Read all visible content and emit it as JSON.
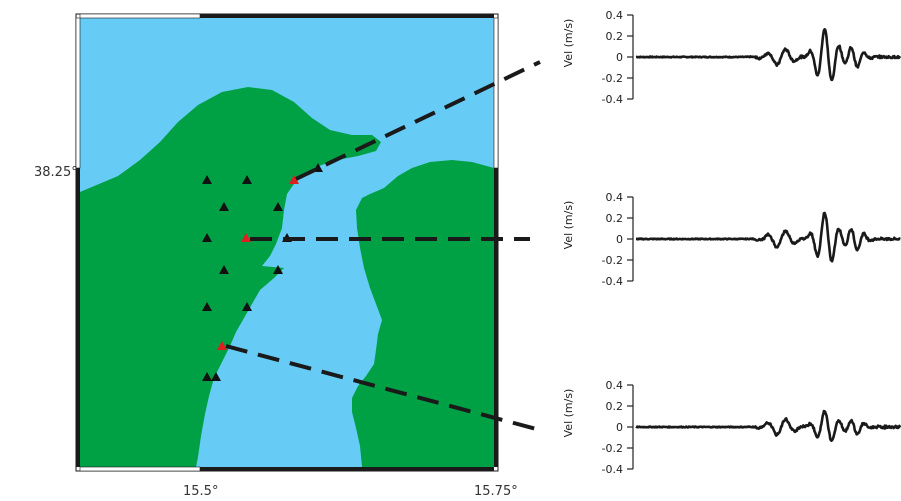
{
  "map": {
    "lat_label": "38.25°",
    "lon_labels": [
      "15.5°",
      "15.75°"
    ],
    "colors": {
      "sea": "#66ccf5",
      "land": "#00a145",
      "frame": "#1a1a1a",
      "station": "#111111",
      "highlight": "#e02020"
    }
  },
  "stations": {
    "black_count": 17,
    "highlighted_count": 3
  },
  "traces": [
    {
      "ylabel": "Vel (m/s)",
      "ticks": [
        "0.4",
        "0.2",
        "0",
        "-0.2",
        "-0.4"
      ],
      "ylim": [
        -0.4,
        0.4
      ],
      "peak": 0.3,
      "trough": -0.22
    },
    {
      "ylabel": "Vel (m/s)",
      "ticks": [
        "0.4",
        "0.2",
        "0",
        "-0.2",
        "-0.4"
      ],
      "ylim": [
        -0.4,
        0.4
      ],
      "peak": 0.28,
      "trough": -0.26
    },
    {
      "ylabel": "Vel (m/s)",
      "ticks": [
        "0.4",
        "0.2",
        "0",
        "-0.2",
        "-0.4"
      ],
      "ylim": [
        -0.4,
        0.4
      ],
      "peak": 0.17,
      "trough": -0.18
    }
  ]
}
